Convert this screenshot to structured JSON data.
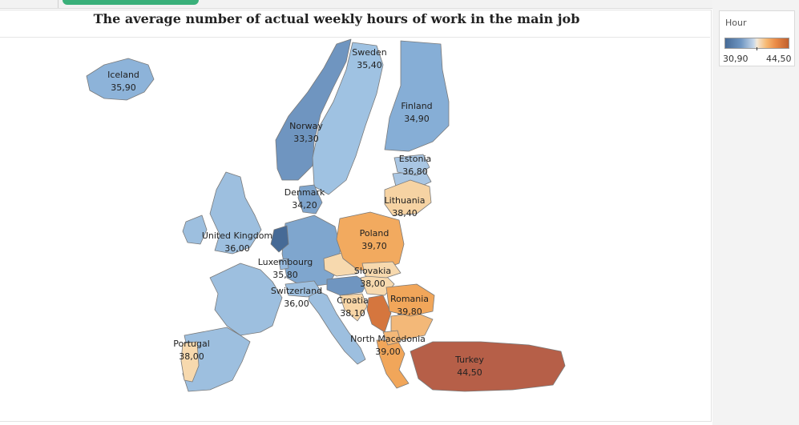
{
  "map": {
    "title": "The average number of actual weekly hours of work in the main job"
  },
  "legend": {
    "title": "Hour",
    "min_label": "30,90",
    "max_label": "44,50",
    "colors": [
      "#466a96",
      "#c8d8ea",
      "#f4e9d8",
      "#ea8a46",
      "#c0602e"
    ]
  },
  "countries": [
    {
      "name": "Iceland",
      "value": "35,90",
      "color": "#8db3d9"
    },
    {
      "name": "Sweden",
      "value": "35,40",
      "color": "#9fc2e2"
    },
    {
      "name": "Finland",
      "value": "34,90",
      "color": "#86aed6"
    },
    {
      "name": "Norway",
      "value": "33,30",
      "color": "#6f95c0"
    },
    {
      "name": "Estonia",
      "value": "36,80",
      "color": "#a9c6e3"
    },
    {
      "name": "Denmark",
      "value": "34,20",
      "color": "#7ea4cc"
    },
    {
      "name": "Lithuania",
      "value": "38,40",
      "color": "#f6d3a3"
    },
    {
      "name": "United Kingdom",
      "value": "36,00",
      "color": "#9dbfdf"
    },
    {
      "name": "Poland",
      "value": "39,70",
      "color": "#f2aa5f"
    },
    {
      "name": "Luxembourg",
      "value": "35,80",
      "color": "#98bbde"
    },
    {
      "name": "Slovakia",
      "value": "38,00",
      "color": "#f7d9ae"
    },
    {
      "name": "Switzerland",
      "value": "36,00",
      "color": "#9dbfdf"
    },
    {
      "name": "Croatia",
      "value": "38,10",
      "color": "#f7d5a6"
    },
    {
      "name": "Romania",
      "value": "39,80",
      "color": "#f1a65a"
    },
    {
      "name": "Portugal",
      "value": "38,00",
      "color": "#f7d9ae"
    },
    {
      "name": "North Macedonia",
      "value": "39,00",
      "color": "#f3b878"
    },
    {
      "name": "Turkey",
      "value": "44,50",
      "color": "#b65f48"
    }
  ]
}
